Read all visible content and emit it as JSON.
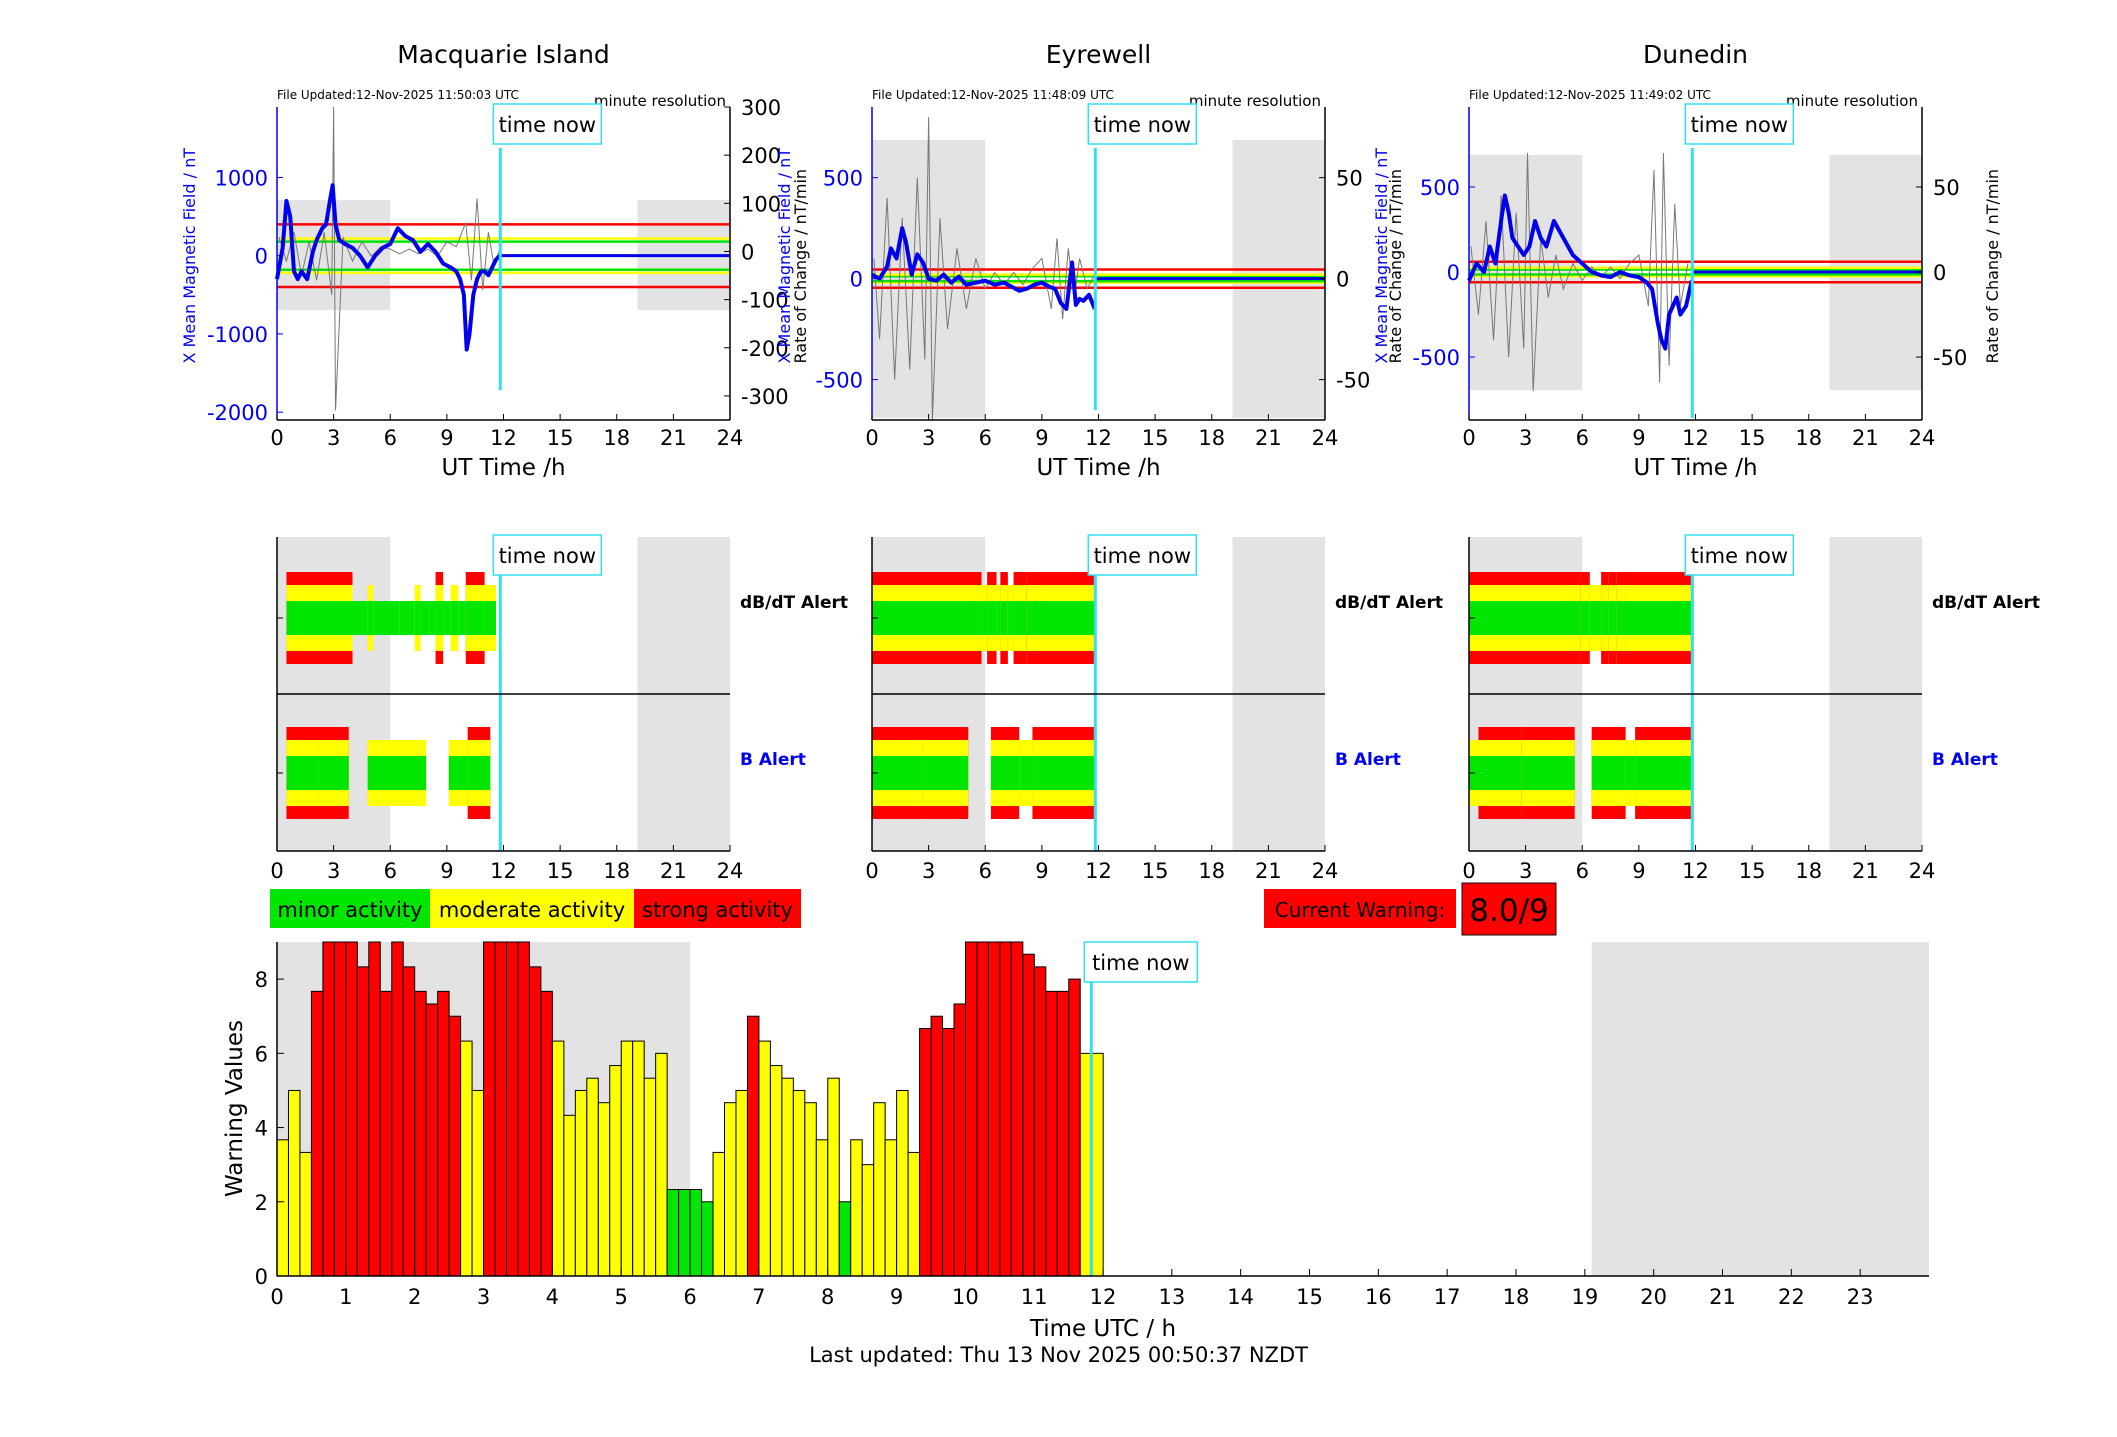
{
  "footer": {
    "last_updated": "Last updated: Thu 13 Nov 2025 00:50:37 NZDT"
  },
  "labels": {
    "time_now": "time now",
    "minute_resolution": "minute resolution",
    "x_axis_station": "UT Time /h",
    "left_axis_station": "X Mean Magnetic Field / nT",
    "right_axis_station": "Rate of Change / nT/min",
    "dbdt_alert": "dB/dT Alert",
    "b_alert": "B Alert",
    "bottom_xlabel": "Time UTC / h",
    "bottom_ylabel": "Warning Values"
  },
  "legend": {
    "items": [
      {
        "label": "minor activity",
        "color": "#00e600"
      },
      {
        "label": "moderate activity",
        "color": "#ffff00"
      },
      {
        "label": "strong activity",
        "color": "#ff0000"
      }
    ]
  },
  "current_warning": {
    "label": "Current Warning:",
    "value": "8.0/9"
  },
  "colors": {
    "minor": "#00e600",
    "moderate": "#ffff00",
    "strong": "#ff0000",
    "field_line": "#0000ee",
    "time_now_line": "#33e0f0",
    "night_shade": "#e3e3e3"
  },
  "chart_data": [
    {
      "type": "line",
      "title": "Macquarie Island",
      "file_updated": "File Updated:12-Nov-2025 11:50:03 UTC",
      "xlabel": "UT Time /h",
      "ylabel": "X Mean Magnetic Field / nT",
      "y2label": "Rate of Change / nT/min",
      "xlim": [
        0,
        24
      ],
      "x_ticks": [
        0,
        3,
        6,
        9,
        12,
        15,
        18,
        21,
        24
      ],
      "ylim": [
        -2100,
        1900
      ],
      "y_ticks": [
        -2000,
        -1000,
        0,
        1000
      ],
      "y2lim": [
        -350,
        300
      ],
      "y2_ticks": [
        -300,
        -200,
        -100,
        0,
        100,
        200,
        300
      ],
      "shaded_hours": [
        [
          0,
          6
        ],
        [
          19.1,
          24
        ]
      ],
      "time_now_hour": 11.83,
      "threshold_levels_nT": [
        -400,
        -220,
        -180,
        180,
        220,
        400
      ],
      "series": [
        {
          "name": "X Mean Magnetic Field",
          "x": [
            0,
            0.3,
            0.5,
            0.7,
            0.9,
            1.1,
            1.3,
            1.6,
            1.9,
            2.1,
            2.4,
            2.6,
            2.8,
            2.95,
            3.1,
            3.3,
            3.6,
            4,
            4.4,
            4.8,
            5.2,
            5.6,
            6,
            6.4,
            6.8,
            7.2,
            7.6,
            8,
            8.4,
            8.8,
            9.2,
            9.5,
            9.7,
            9.9,
            10.05,
            10.2,
            10.4,
            10.6,
            10.8,
            11,
            11.2,
            11.4,
            11.6,
            11.8
          ],
          "y": [
            -300,
            100,
            700,
            500,
            -200,
            -300,
            -200,
            -300,
            50,
            200,
            350,
            400,
            700,
            900,
            400,
            200,
            150,
            100,
            0,
            -150,
            0,
            100,
            150,
            350,
            250,
            200,
            50,
            150,
            50,
            -100,
            -150,
            -200,
            -300,
            -500,
            -1200,
            -1000,
            -500,
            -300,
            -200,
            -200,
            -250,
            -150,
            -50,
            0
          ]
        },
        {
          "name": "Rate of Change",
          "x": [
            0.1,
            0.5,
            0.9,
            1.3,
            1.7,
            2.1,
            2.5,
            2.9,
            3.0,
            3.1,
            3.5,
            4.0,
            4.5,
            5.0,
            5.5,
            6.0,
            6.5,
            7.0,
            7.5,
            8.0,
            8.5,
            9.0,
            9.5,
            10.0,
            10.3,
            10.6,
            10.9,
            11.2,
            11.5,
            11.8
          ],
          "y": [
            30,
            -20,
            40,
            -50,
            20,
            -60,
            40,
            -90,
            300,
            -330,
            30,
            -20,
            20,
            -10,
            10,
            5,
            -5,
            5,
            -5,
            5,
            -10,
            20,
            10,
            60,
            -60,
            110,
            -80,
            40,
            -30,
            5
          ]
        }
      ]
    },
    {
      "type": "line",
      "title": "Eyrewell",
      "file_updated": "File Updated:12-Nov-2025 11:48:09 UTC",
      "xlabel": "UT Time /h",
      "ylabel": "X Mean Magnetic Field / nT",
      "y2label": "Rate of Change / nT/min",
      "xlim": [
        0,
        24
      ],
      "x_ticks": [
        0,
        3,
        6,
        9,
        12,
        15,
        18,
        21,
        24
      ],
      "ylim": [
        -700,
        850
      ],
      "y_ticks": [
        -500,
        0,
        500
      ],
      "y2lim": [
        -70,
        85
      ],
      "y2_ticks": [
        -50,
        0,
        50
      ],
      "shaded_hours": [
        [
          0,
          6
        ],
        [
          19.1,
          24
        ]
      ],
      "time_now_hour": 11.83,
      "threshold_levels_nT": [
        -45,
        -20,
        -12,
        12,
        20,
        45
      ],
      "series": [
        {
          "name": "X Mean Magnetic Field",
          "x": [
            0,
            0.4,
            0.8,
            1.0,
            1.3,
            1.6,
            1.8,
            2.1,
            2.4,
            2.7,
            3.0,
            3.4,
            3.8,
            4.2,
            4.6,
            5,
            5.5,
            6,
            6.5,
            7,
            7.4,
            7.8,
            8.2,
            8.6,
            9,
            9.4,
            9.7,
            10,
            10.3,
            10.6,
            10.8,
            11.0,
            11.2,
            11.5,
            11.8
          ],
          "y": [
            20,
            0,
            60,
            150,
            100,
            250,
            180,
            20,
            120,
            80,
            0,
            -10,
            20,
            -20,
            10,
            -30,
            -20,
            -10,
            -30,
            -20,
            -40,
            -60,
            -50,
            -30,
            -20,
            -40,
            -50,
            -120,
            -150,
            80,
            -130,
            -100,
            -110,
            -80,
            -150
          ]
        },
        {
          "name": "Rate of Change",
          "x": [
            0.1,
            0.4,
            0.8,
            1.2,
            1.6,
            2.0,
            2.4,
            2.8,
            3.0,
            3.2,
            3.6,
            4.0,
            4.5,
            5.0,
            5.5,
            6.0,
            6.5,
            7.0,
            7.5,
            8.0,
            8.5,
            9.0,
            9.5,
            9.8,
            10.1,
            10.4,
            10.7,
            11.0,
            11.4,
            11.8
          ],
          "y": [
            10,
            -30,
            40,
            -50,
            30,
            -45,
            50,
            -40,
            80,
            -70,
            30,
            -25,
            15,
            -15,
            10,
            -5,
            3,
            -3,
            3,
            -3,
            5,
            10,
            -15,
            20,
            -20,
            15,
            -10,
            10,
            -5,
            2
          ]
        }
      ]
    },
    {
      "type": "line",
      "title": "Dunedin",
      "file_updated": "File Updated:12-Nov-2025 11:49:02 UTC",
      "xlabel": "UT Time /h",
      "ylabel": "X Mean Magnetic Field / nT",
      "y2label": "Rate of Change / nT/min",
      "xlim": [
        0,
        24
      ],
      "x_ticks": [
        0,
        3,
        6,
        9,
        12,
        15,
        18,
        21,
        24
      ],
      "ylim": [
        -870,
        970
      ],
      "y_ticks": [
        -500,
        0,
        500
      ],
      "y2lim": [
        -87,
        97
      ],
      "y2_ticks": [
        -50,
        0,
        50
      ],
      "shaded_hours": [
        [
          0,
          6
        ],
        [
          19.1,
          24
        ]
      ],
      "time_now_hour": 11.83,
      "threshold_levels_nT": [
        -60,
        -25,
        -15,
        15,
        25,
        60
      ],
      "series": [
        {
          "name": "X Mean Magnetic Field",
          "x": [
            0,
            0.4,
            0.8,
            1.1,
            1.4,
            1.7,
            1.9,
            2.1,
            2.3,
            2.6,
            2.9,
            3.2,
            3.5,
            3.8,
            4.1,
            4.5,
            5,
            5.5,
            6,
            6.5,
            7,
            7.5,
            8,
            8.5,
            9,
            9.4,
            9.7,
            10,
            10.2,
            10.4,
            10.6,
            10.8,
            11.0,
            11.2,
            11.5,
            11.8
          ],
          "y": [
            -50,
            50,
            0,
            150,
            50,
            300,
            450,
            350,
            200,
            150,
            100,
            150,
            300,
            200,
            150,
            300,
            200,
            100,
            50,
            0,
            -20,
            -30,
            0,
            -20,
            -30,
            -60,
            -100,
            -300,
            -400,
            -450,
            -250,
            -200,
            -150,
            -250,
            -200,
            -50
          ]
        },
        {
          "name": "Rate of Change",
          "x": [
            0.1,
            0.5,
            0.9,
            1.3,
            1.7,
            2.1,
            2.5,
            2.9,
            3.1,
            3.4,
            3.8,
            4.2,
            4.6,
            5.0,
            5.5,
            6.0,
            6.5,
            7.0,
            7.5,
            8.0,
            8.5,
            9.0,
            9.5,
            9.8,
            10.1,
            10.3,
            10.6,
            10.9,
            11.2,
            11.6
          ],
          "y": [
            15,
            -25,
            30,
            -40,
            45,
            -50,
            35,
            -45,
            70,
            -70,
            20,
            -15,
            10,
            -10,
            5,
            -5,
            3,
            -3,
            3,
            -4,
            5,
            10,
            -20,
            60,
            -65,
            70,
            -55,
            40,
            -20,
            5
          ]
        }
      ]
    },
    {
      "type": "alert_bands",
      "station": "Macquarie Island",
      "xlim": [
        0,
        24
      ],
      "x_ticks": [
        0,
        3,
        6,
        9,
        12,
        15,
        18,
        21,
        24
      ],
      "shaded_hours": [
        [
          0,
          6
        ],
        [
          19.1,
          24
        ]
      ],
      "time_now_hour": 11.83,
      "dbdt_alert": [
        [
          0.5,
          4.0,
          3
        ],
        [
          4.0,
          4.8,
          1
        ],
        [
          4.8,
          5.1,
          2
        ],
        [
          5.1,
          6.5,
          1
        ],
        [
          6.5,
          7.3,
          1
        ],
        [
          7.3,
          7.6,
          2
        ],
        [
          7.6,
          8.1,
          1
        ],
        [
          8.1,
          8.4,
          1
        ],
        [
          8.4,
          8.8,
          3
        ],
        [
          8.8,
          9.2,
          1
        ],
        [
          9.2,
          9.6,
          2
        ],
        [
          9.6,
          10.0,
          1
        ],
        [
          10.0,
          11.0,
          3
        ],
        [
          11.0,
          11.6,
          2
        ]
      ],
      "b_alert": [
        [
          0.5,
          2.2,
          3
        ],
        [
          2.2,
          3.8,
          3
        ],
        [
          4.8,
          7.9,
          2
        ],
        [
          9.1,
          10.1,
          2
        ],
        [
          10.1,
          11.3,
          3
        ]
      ]
    },
    {
      "type": "alert_bands",
      "station": "Eyrewell",
      "xlim": [
        0,
        24
      ],
      "x_ticks": [
        0,
        3,
        6,
        9,
        12,
        15,
        18,
        21,
        24
      ],
      "shaded_hours": [
        [
          0,
          6
        ],
        [
          19.1,
          24
        ]
      ],
      "time_now_hour": 11.83,
      "dbdt_alert": [
        [
          0.0,
          5.8,
          3
        ],
        [
          5.8,
          6.1,
          2
        ],
        [
          6.1,
          6.6,
          3
        ],
        [
          6.6,
          6.8,
          2
        ],
        [
          6.8,
          7.2,
          3
        ],
        [
          7.2,
          7.5,
          2
        ],
        [
          7.5,
          8.2,
          3
        ],
        [
          8.2,
          11.8,
          3
        ]
      ],
      "b_alert": [
        [
          0.0,
          2.7,
          3
        ],
        [
          2.7,
          5.1,
          3
        ],
        [
          6.3,
          7.8,
          3
        ],
        [
          7.8,
          8.5,
          2
        ],
        [
          8.5,
          11.8,
          3
        ]
      ]
    },
    {
      "type": "alert_bands",
      "station": "Dunedin",
      "xlim": [
        0,
        24
      ],
      "x_ticks": [
        0,
        3,
        6,
        9,
        12,
        15,
        18,
        21,
        24
      ],
      "shaded_hours": [
        [
          0,
          6
        ],
        [
          19.1,
          24
        ]
      ],
      "time_now_hour": 11.83,
      "dbdt_alert": [
        [
          0.0,
          5.9,
          3
        ],
        [
          5.9,
          6.4,
          3
        ],
        [
          6.4,
          7.0,
          2
        ],
        [
          7.0,
          7.4,
          3
        ],
        [
          7.4,
          7.8,
          3
        ],
        [
          7.8,
          11.9,
          3
        ]
      ],
      "b_alert": [
        [
          0.0,
          0.5,
          2
        ],
        [
          0.5,
          2.8,
          3
        ],
        [
          2.8,
          5.6,
          3
        ],
        [
          6.5,
          8.3,
          3
        ],
        [
          8.3,
          8.8,
          2
        ],
        [
          8.8,
          11.9,
          3
        ]
      ]
    },
    {
      "type": "bar",
      "xlabel": "Time UTC / h",
      "ylabel": "Warning Values",
      "xlim": [
        0,
        24
      ],
      "x_ticks": [
        0,
        1,
        2,
        3,
        4,
        5,
        6,
        7,
        8,
        9,
        10,
        11,
        12,
        13,
        14,
        15,
        16,
        17,
        18,
        19,
        20,
        21,
        22,
        23
      ],
      "ylim": [
        0,
        9
      ],
      "y_ticks": [
        0,
        2,
        4,
        6,
        8
      ],
      "bar_width_hours": 0.1667,
      "shaded_hours": [
        [
          0,
          6
        ],
        [
          19.1,
          24
        ]
      ],
      "time_now_hour": 11.83,
      "values": [
        3.67,
        5,
        3.33,
        7.67,
        9,
        9,
        9,
        8.33,
        9,
        7.67,
        9,
        8.33,
        7.67,
        7.33,
        7.67,
        7,
        6.33,
        5,
        9,
        9,
        9,
        9,
        8.33,
        7.67,
        6.33,
        4.33,
        5,
        5.33,
        4.67,
        5.67,
        6.33,
        6.33,
        5.33,
        6,
        2.33,
        2.33,
        2.33,
        2,
        3.33,
        4.67,
        5,
        7,
        6.33,
        5.67,
        5.33,
        5,
        4.67,
        3.67,
        5.33,
        2,
        3.67,
        3,
        4.67,
        3.67,
        5,
        3.33,
        6.67,
        7,
        6.67,
        7.33,
        9,
        9,
        9,
        9,
        9,
        8.67,
        8.33,
        7.67,
        7.67,
        8,
        6,
        6
      ]
    }
  ]
}
